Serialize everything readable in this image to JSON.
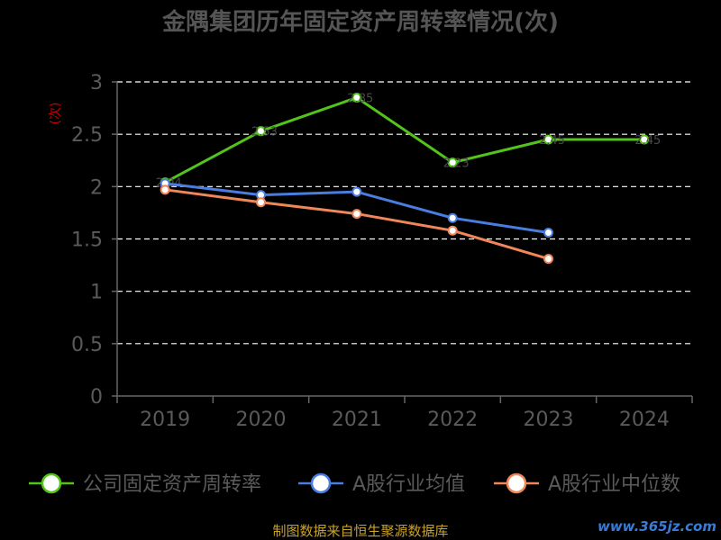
{
  "chart_data": {
    "type": "line",
    "title": "金隅集团历年固定资产周转率情况(次)",
    "ylabel": "(次)",
    "xlabel": "",
    "categories": [
      "2019",
      "2020",
      "2021",
      "2022",
      "2023",
      "2024"
    ],
    "ylim": [
      0,
      3
    ],
    "yticks": [
      "0",
      "0.5",
      "1",
      "1.5",
      "2",
      "2.5",
      "3"
    ],
    "grid": true,
    "legend_position": "bottom",
    "series": [
      {
        "name": "公司固定资产周转率",
        "color": "#52c41a",
        "values": [
          2.04,
          2.53,
          2.85,
          2.23,
          2.45,
          2.45
        ],
        "labels": [
          "2.04",
          "2.53",
          "2.85",
          "2.23",
          "2.45",
          "2.45"
        ]
      },
      {
        "name": "A股行业均值",
        "color": "#4a7de0",
        "values": [
          2.03,
          1.92,
          1.95,
          1.7,
          1.56,
          null
        ]
      },
      {
        "name": "A股行业中位数",
        "color": "#f0875a",
        "values": [
          1.97,
          1.85,
          1.74,
          1.58,
          1.31,
          null
        ]
      }
    ]
  },
  "footer": {
    "source": "制图数据来自恒生聚源数据库",
    "watermark": "www.365jz.com"
  }
}
